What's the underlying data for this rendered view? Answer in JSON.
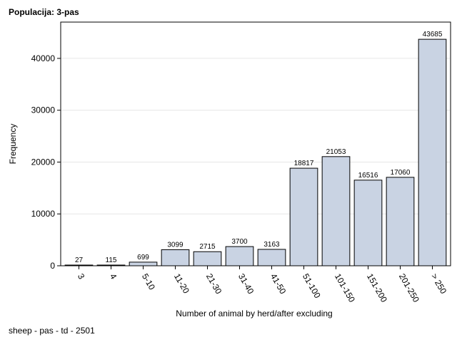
{
  "page": {
    "title": "Populacija: 3-pas",
    "footer": "sheep - pas - td - 2501"
  },
  "chart_data": {
    "type": "bar",
    "title": "Populacija: 3-pas",
    "xlabel": "Number of animal by herd/after excluding",
    "ylabel": "Frequency",
    "categories": [
      "3",
      "4",
      "5-10",
      "11-20",
      "21-30",
      "31-40",
      "41-50",
      "51-100",
      "101-150",
      "151-200",
      "201-250",
      "> 250"
    ],
    "values": [
      27,
      115,
      699,
      3099,
      2715,
      3700,
      3163,
      18817,
      21053,
      16516,
      17060,
      43685
    ],
    "data_labels": [
      "27",
      "115",
      "699",
      "3099",
      "2715",
      "3700",
      "3163",
      "18817",
      "21053",
      "16516",
      "17060",
      "43685"
    ],
    "yticks": [
      0,
      10000,
      20000,
      30000,
      40000
    ],
    "ylim": [
      0,
      47000
    ],
    "grid": true,
    "bar_color": "#c9d3e3",
    "bar_stroke": "#000000",
    "grid_color": "#e6e6e6"
  }
}
